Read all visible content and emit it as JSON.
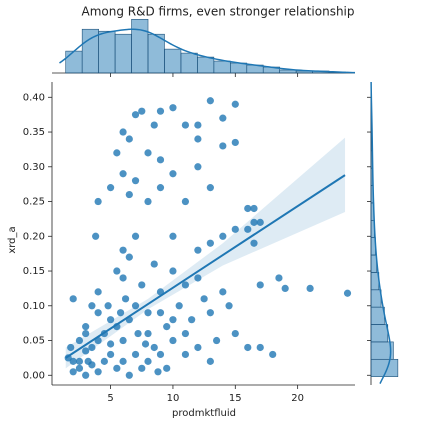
{
  "chart_data": {
    "type": "scatter",
    "title": "Among R&D firms, even stronger relationship",
    "x_label": "prodmktfluid",
    "y_label": "xrd_a",
    "color": "#1f77b4",
    "xlim": [
      0.3,
      24.6
    ],
    "ylim": [
      -0.014,
      0.422
    ],
    "xticks": [
      5,
      10,
      15,
      20
    ],
    "yticks": [
      {
        "value": 0,
        "label": "0.00"
      },
      {
        "value": 0.05,
        "label": "0.05"
      },
      {
        "value": 0.1,
        "label": "0.10"
      },
      {
        "value": 0.15,
        "label": "0.15"
      },
      {
        "value": 0.2,
        "label": "0.20"
      },
      {
        "value": 0.25,
        "label": "0.25"
      },
      {
        "value": 0.3,
        "label": "0.30"
      },
      {
        "value": 0.35,
        "label": "0.35"
      },
      {
        "value": 0.4,
        "label": "0.40"
      }
    ],
    "x": [
      9,
      7.5,
      13,
      10,
      15,
      7,
      6,
      6.5,
      5.5,
      8.5,
      11,
      12,
      14,
      15,
      8,
      9,
      6,
      7,
      10,
      12,
      14,
      12,
      9,
      11,
      13,
      5,
      6.5,
      4,
      8,
      16,
      16.5,
      15,
      3.8,
      7,
      6,
      12,
      13,
      10,
      14,
      16,
      16.5,
      17,
      17,
      18.5,
      19,
      21,
      24,
      16.5,
      2,
      3.5,
      3,
      2,
      2.5,
      3,
      4,
      4,
      5,
      5.5,
      6,
      6.5,
      6.2,
      7,
      7.2,
      7.5,
      8,
      8.5,
      9,
      9.5,
      10,
      10.5,
      11,
      11.5,
      12,
      12.5,
      13,
      13.5,
      14,
      14.5,
      15,
      16,
      17,
      18,
      2,
      2.5,
      3,
      3.5,
      4,
      4.5,
      5,
      5.5,
      6,
      6.5,
      7,
      7.5,
      8,
      8.5,
      9,
      9.5,
      10,
      11,
      12,
      13,
      4.5,
      5,
      5.5,
      6,
      6.5,
      3.5,
      4,
      2.5,
      3,
      8,
      9,
      10,
      11,
      1.6,
      1.8,
      3.2,
      4.8,
      5.8,
      7.8,
      8.8
    ],
    "y": [
      0.38,
      0.38,
      0.395,
      0.385,
      0.39,
      0.375,
      0.35,
      0.34,
      0.32,
      0.36,
      0.36,
      0.36,
      0.37,
      0.335,
      0.32,
      0.31,
      0.29,
      0.28,
      0.29,
      0.3,
      0.33,
      0.34,
      0.27,
      0.25,
      0.27,
      0.27,
      0.26,
      0.25,
      0.25,
      0.24,
      0.22,
      0.21,
      0.2,
      0.2,
      0.18,
      0.18,
      0.19,
      0.2,
      0.2,
      0.21,
      0.24,
      0.22,
      0.13,
      0.14,
      0.125,
      0.125,
      0.118,
      0.19,
      0.11,
      0.1,
      0.07,
      0.02,
      0.01,
      0.035,
      0.05,
      0.12,
      0.08,
      0.15,
      0.14,
      0.17,
      0.11,
      0.1,
      0.06,
      0.13,
      0.09,
      0.16,
      0.12,
      0.07,
      0.15,
      0.1,
      0.13,
      0.08,
      0.14,
      0.11,
      0.09,
      0.05,
      0.12,
      0.1,
      0.06,
      0.04,
      0.04,
      0.03,
      0.005,
      0.02,
      0,
      0.015,
      0.005,
      0.02,
      0.03,
      0.01,
      0.02,
      0,
      0.03,
      0.01,
      0.02,
      0.04,
      0.03,
      0.01,
      0.05,
      0.03,
      0.04,
      0.02,
      0.06,
      0.045,
      0.07,
      0.05,
      0.08,
      0.04,
      0.09,
      0.05,
      0.06,
      0.06,
      0.09,
      0.08,
      0.06,
      0.025,
      0.04,
      0.02,
      0.1,
      0.09,
      0.045,
      0.005
    ],
    "fit": {
      "x": [
        1.4,
        8,
        14,
        23.8
      ],
      "y": [
        0.025,
        0.1025,
        0.173,
        0.288
      ],
      "ci_low": [
        0.01,
        0.095,
        0.158,
        0.235
      ],
      "ci_high": [
        0.04,
        0.11,
        0.19,
        0.342
      ]
    },
    "x_hist": {
      "bins": [
        1.4,
        2.72,
        4.04,
        5.36,
        6.68,
        8.0,
        9.32,
        10.64,
        11.96,
        13.28,
        14.6,
        15.92,
        17.24,
        18.56,
        19.88,
        21.2,
        22.52,
        23.84
      ],
      "counts": [
        22,
        44,
        42,
        39,
        54,
        39,
        24,
        20,
        16,
        12,
        10,
        8,
        6,
        3,
        2,
        2,
        1
      ]
    },
    "y_hist": {
      "bins": [
        -0.002,
        0.023,
        0.048,
        0.073,
        0.098,
        0.123,
        0.148,
        0.173,
        0.198,
        0.223,
        0.248,
        0.273,
        0.298,
        0.323,
        0.348,
        0.373,
        0.398
      ],
      "counts": [
        48,
        40,
        30,
        24,
        18,
        14,
        10,
        8,
        6,
        5,
        4,
        3,
        3,
        2,
        2,
        1
      ]
    }
  }
}
